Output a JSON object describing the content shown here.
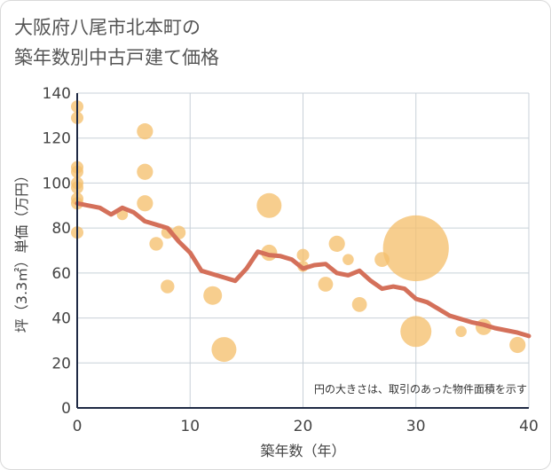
{
  "title_lines": [
    "大阪府八尾市北本町の",
    "築年数別中古戸建て価格"
  ],
  "chart_data": {
    "type": "scatter",
    "xlabel": "築年数（年）",
    "ylabel": "坪（3.3㎡）単価（万円）",
    "xlim": [
      0,
      40
    ],
    "ylim": [
      0,
      140
    ],
    "xticks": [
      0,
      10,
      20,
      30,
      40
    ],
    "yticks": [
      0,
      20,
      40,
      60,
      80,
      100,
      120,
      140
    ],
    "grid": true,
    "annotation": "円の大きさは、取引のあった物件面積を示す",
    "colors": {
      "bubble": "#f5c06e",
      "line": "#d4705a",
      "grid": "#c8d0d8",
      "axis": "#1f2a44"
    },
    "points": [
      {
        "x": 0,
        "y": 134,
        "size": 1.0
      },
      {
        "x": 0,
        "y": 129,
        "size": 1.0
      },
      {
        "x": 0,
        "y": 107,
        "size": 1.0
      },
      {
        "x": 0,
        "y": 105,
        "size": 1.0
      },
      {
        "x": 0,
        "y": 100,
        "size": 1.0
      },
      {
        "x": 0,
        "y": 98,
        "size": 1.0
      },
      {
        "x": 0,
        "y": 93,
        "size": 1.0
      },
      {
        "x": 0,
        "y": 91,
        "size": 1.0
      },
      {
        "x": 0,
        "y": 78,
        "size": 1.0
      },
      {
        "x": 4,
        "y": 86,
        "size": 0.9
      },
      {
        "x": 6,
        "y": 123,
        "size": 1.3
      },
      {
        "x": 6,
        "y": 105,
        "size": 1.3
      },
      {
        "x": 6,
        "y": 91,
        "size": 1.3
      },
      {
        "x": 7,
        "y": 73,
        "size": 1.1
      },
      {
        "x": 8,
        "y": 54,
        "size": 1.1
      },
      {
        "x": 8,
        "y": 78,
        "size": 1.0
      },
      {
        "x": 9,
        "y": 78,
        "size": 1.1
      },
      {
        "x": 12,
        "y": 50,
        "size": 1.5
      },
      {
        "x": 13,
        "y": 26,
        "size": 2.0
      },
      {
        "x": 17,
        "y": 90,
        "size": 2.0
      },
      {
        "x": 17,
        "y": 69,
        "size": 1.3
      },
      {
        "x": 20,
        "y": 68,
        "size": 1.0
      },
      {
        "x": 20,
        "y": 63,
        "size": 0.9
      },
      {
        "x": 22,
        "y": 55,
        "size": 1.2
      },
      {
        "x": 23,
        "y": 73,
        "size": 1.3
      },
      {
        "x": 24,
        "y": 66,
        "size": 0.9
      },
      {
        "x": 25,
        "y": 46,
        "size": 1.2
      },
      {
        "x": 27,
        "y": 66,
        "size": 1.2
      },
      {
        "x": 30,
        "y": 71,
        "size": 5.3
      },
      {
        "x": 30,
        "y": 34,
        "size": 2.5
      },
      {
        "x": 34,
        "y": 34,
        "size": 0.9
      },
      {
        "x": 36,
        "y": 36,
        "size": 1.3
      },
      {
        "x": 39,
        "y": 28,
        "size": 1.3
      }
    ],
    "trend": [
      [
        0,
        91
      ],
      [
        1,
        90
      ],
      [
        2,
        89
      ],
      [
        3,
        86
      ],
      [
        4,
        89
      ],
      [
        5,
        87
      ],
      [
        6,
        83
      ],
      [
        7,
        81.5
      ],
      [
        8,
        80
      ],
      [
        9,
        74
      ],
      [
        10,
        69
      ],
      [
        11,
        61
      ],
      [
        12,
        59.5
      ],
      [
        13,
        58
      ],
      [
        14,
        56.5
      ],
      [
        15,
        62
      ],
      [
        16,
        69.5
      ],
      [
        17,
        68
      ],
      [
        18,
        67.5
      ],
      [
        19,
        66
      ],
      [
        20,
        62
      ],
      [
        21,
        63.5
      ],
      [
        22,
        64
      ],
      [
        23,
        60
      ],
      [
        24,
        59
      ],
      [
        25,
        61
      ],
      [
        26,
        56.5
      ],
      [
        27,
        53
      ],
      [
        28,
        54
      ],
      [
        29,
        53
      ],
      [
        30,
        48.5
      ],
      [
        31,
        47
      ],
      [
        32,
        44
      ],
      [
        33,
        41
      ],
      [
        34,
        39.5
      ],
      [
        35,
        38
      ],
      [
        36,
        37
      ],
      [
        37,
        35.5
      ],
      [
        38,
        34.5
      ],
      [
        39,
        33.5
      ],
      [
        40,
        32
      ]
    ]
  }
}
